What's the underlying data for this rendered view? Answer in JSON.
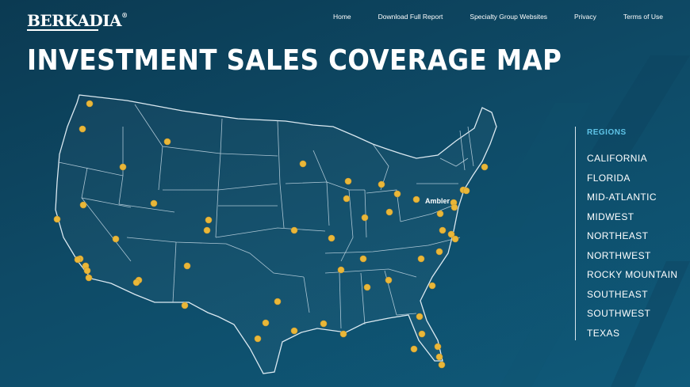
{
  "header": {
    "logo_text": "BERKADIA",
    "logo_mark": "®",
    "nav": [
      "Home",
      "Download Full Report",
      "Specialty Group Websites",
      "Privacy",
      "Terms of Use"
    ]
  },
  "page": {
    "title": "INVESTMENT SALES COVERAGE MAP"
  },
  "map": {
    "city_label": "Ambler",
    "colors": {
      "marker": "#e9b739",
      "state_lines": "#c7dbe6",
      "background": "#0e4a66",
      "accent": "#5fc4e8"
    }
  },
  "regions": {
    "heading": "REGIONS",
    "items": [
      "CALIFORNIA",
      "FLORIDA",
      "MID-ATLANTIC",
      "MIDWEST",
      "NORTHEAST",
      "NORTHWEST",
      "ROCKY MOUNTAIN",
      "SOUTHEAST",
      "SOUTHWEST",
      "TEXAS"
    ]
  }
}
